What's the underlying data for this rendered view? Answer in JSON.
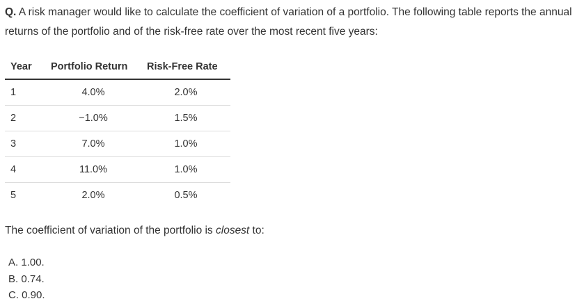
{
  "question": {
    "prefix": "Q.",
    "text": "A risk manager would like to calculate the coefficient of variation of a portfolio. The following table reports the annual returns of the portfolio and of the risk-free rate over the most recent five years:"
  },
  "table": {
    "headers": [
      "Year",
      "Portfolio Return",
      "Risk-Free Rate"
    ],
    "rows": [
      {
        "year": "1",
        "portfolio_return": "4.0%",
        "risk_free_rate": "2.0%"
      },
      {
        "year": "2",
        "portfolio_return": "−1.0%",
        "risk_free_rate": "1.5%"
      },
      {
        "year": "3",
        "portfolio_return": "7.0%",
        "risk_free_rate": "1.0%"
      },
      {
        "year": "4",
        "portfolio_return": "11.0%",
        "risk_free_rate": "1.0%"
      },
      {
        "year": "5",
        "portfolio_return": "2.0%",
        "risk_free_rate": "0.5%"
      }
    ]
  },
  "prompt": {
    "before": "The coefficient of variation of the portfolio is ",
    "emphasis": "closest",
    "after": " to:"
  },
  "choices": [
    "A. 1.00.",
    "B. 0.74.",
    "C. 0.90."
  ]
}
